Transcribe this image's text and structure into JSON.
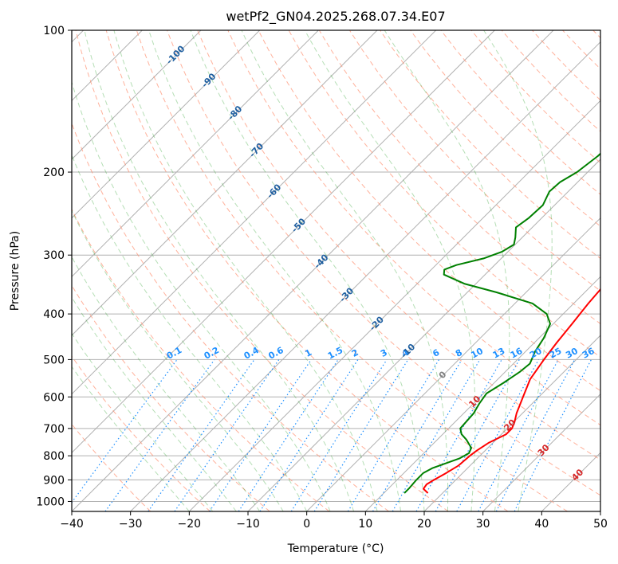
{
  "chart_data": {
    "type": "skew-t",
    "title": "wetPf2_GN04.2025.268.07.34.E07",
    "xlabel": "Temperature (°C)",
    "ylabel": "Pressure (hPa)",
    "xlim": [
      -40,
      50
    ],
    "ylim": [
      1050,
      100
    ],
    "y_scale": "log",
    "x_ticks": [
      "−40",
      "−30",
      "−20",
      "−10",
      "0",
      "10",
      "20",
      "30",
      "40",
      "50"
    ],
    "y_ticks": [
      {
        "p": 100,
        "label": "100"
      },
      {
        "p": 200,
        "label": "200"
      },
      {
        "p": 300,
        "label": "300"
      },
      {
        "p": 400,
        "label": "400"
      },
      {
        "p": 500,
        "label": "500"
      },
      {
        "p": 600,
        "label": "600"
      },
      {
        "p": 700,
        "label": "700"
      },
      {
        "p": 800,
        "label": "800"
      },
      {
        "p": 900,
        "label": "900"
      },
      {
        "p": 1000,
        "label": "1000"
      }
    ],
    "isotherm_labels": [
      {
        "t": -100,
        "p": 113,
        "label": "-100"
      },
      {
        "t": -90,
        "p": 128,
        "label": "-90"
      },
      {
        "t": -80,
        "p": 150,
        "label": "-80"
      },
      {
        "t": -70,
        "p": 180,
        "label": "-70"
      },
      {
        "t": -60,
        "p": 220,
        "label": "-60"
      },
      {
        "t": -50,
        "p": 260,
        "label": "-50"
      },
      {
        "t": -40,
        "p": 310,
        "label": "-40"
      },
      {
        "t": -30,
        "p": 365,
        "label": "-30"
      },
      {
        "t": -20,
        "p": 420,
        "label": "-20"
      },
      {
        "t": -10,
        "p": 480,
        "label": "-10"
      },
      {
        "t": 0,
        "p": 540,
        "label": "0"
      },
      {
        "t": 10,
        "p": 615,
        "label": "10"
      },
      {
        "t": 20,
        "p": 690,
        "label": "20"
      },
      {
        "t": 30,
        "p": 780,
        "label": "30"
      },
      {
        "t": 40,
        "p": 880,
        "label": "40"
      }
    ],
    "mixing_ratio_labels": [
      "0.1",
      "0.2",
      "0.4",
      "0.6",
      "1",
      "1.5",
      "2",
      "3",
      "4",
      "6",
      "8",
      "10",
      "13",
      "16",
      "20",
      "25",
      "30",
      "36"
    ],
    "series": [
      {
        "color": "#ff0000",
        "points": [
          {
            "p": 960,
            "t": 17.5
          },
          {
            "p": 940,
            "t": 16.0
          },
          {
            "p": 920,
            "t": 15.8
          },
          {
            "p": 900,
            "t": 16.3
          },
          {
            "p": 870,
            "t": 17.2
          },
          {
            "p": 840,
            "t": 18.0
          },
          {
            "p": 800,
            "t": 18.3
          },
          {
            "p": 780,
            "t": 18.6
          },
          {
            "p": 750,
            "t": 19.3
          },
          {
            "p": 720,
            "t": 20.8
          },
          {
            "p": 700,
            "t": 20.8
          },
          {
            "p": 680,
            "t": 20.2
          },
          {
            "p": 650,
            "t": 19.0
          },
          {
            "p": 600,
            "t": 17.3
          },
          {
            "p": 550,
            "t": 15.5
          },
          {
            "p": 500,
            "t": 14.5
          },
          {
            "p": 460,
            "t": 13.8
          },
          {
            "p": 420,
            "t": 13.2
          },
          {
            "p": 380,
            "t": 12.5
          },
          {
            "p": 350,
            "t": 12.1
          },
          {
            "p": 320,
            "t": 11.0
          },
          {
            "p": 300,
            "t": 9.0
          },
          {
            "p": 280,
            "t": 6.8
          },
          {
            "p": 260,
            "t": 4.5
          },
          {
            "p": 240,
            "t": 2.3
          },
          {
            "p": 220,
            "t": 0.8
          },
          {
            "p": 200,
            "t": -0.5
          },
          {
            "p": 185,
            "t": -1.0
          },
          {
            "p": 170,
            "t": -1.6
          },
          {
            "p": 155,
            "t": -3.0
          },
          {
            "p": 145,
            "t": -4.0
          },
          {
            "p": 135,
            "t": -4.0
          },
          {
            "p": 128,
            "t": -3.2
          },
          {
            "p": 122,
            "t": -1.6
          },
          {
            "p": 115,
            "t": -0.3
          },
          {
            "p": 110,
            "t": 0.0
          },
          {
            "p": 105,
            "t": 0.7
          },
          {
            "p": 100,
            "t": 2.5
          }
        ]
      },
      {
        "color": "#008000",
        "points": [
          {
            "p": 960,
            "t": 13.5
          },
          {
            "p": 940,
            "t": 13.5
          },
          {
            "p": 900,
            "t": 13.3
          },
          {
            "p": 870,
            "t": 13.3
          },
          {
            "p": 850,
            "t": 14.0
          },
          {
            "p": 830,
            "t": 15.5
          },
          {
            "p": 810,
            "t": 17.0
          },
          {
            "p": 790,
            "t": 17.7
          },
          {
            "p": 770,
            "t": 17.2
          },
          {
            "p": 740,
            "t": 15.0
          },
          {
            "p": 720,
            "t": 13.2
          },
          {
            "p": 700,
            "t": 12.0
          },
          {
            "p": 650,
            "t": 11.7
          },
          {
            "p": 620,
            "t": 11.0
          },
          {
            "p": 590,
            "t": 10.5
          },
          {
            "p": 560,
            "t": 11.6
          },
          {
            "p": 530,
            "t": 12.5
          },
          {
            "p": 510,
            "t": 12.8
          },
          {
            "p": 480,
            "t": 11.6
          },
          {
            "p": 450,
            "t": 10.8
          },
          {
            "p": 420,
            "t": 9.5
          },
          {
            "p": 400,
            "t": 7.2
          },
          {
            "p": 380,
            "t": 3.0
          },
          {
            "p": 360,
            "t": -5.0
          },
          {
            "p": 345,
            "t": -12.0
          },
          {
            "p": 330,
            "t": -17.0
          },
          {
            "p": 322,
            "t": -17.8
          },
          {
            "p": 315,
            "t": -16.5
          },
          {
            "p": 305,
            "t": -13.0
          },
          {
            "p": 295,
            "t": -11.0
          },
          {
            "p": 285,
            "t": -10.2
          },
          {
            "p": 275,
            "t": -11.2
          },
          {
            "p": 262,
            "t": -12.8
          },
          {
            "p": 250,
            "t": -12.2
          },
          {
            "p": 235,
            "t": -12.0
          },
          {
            "p": 220,
            "t": -13.2
          },
          {
            "p": 210,
            "t": -13.0
          },
          {
            "p": 200,
            "t": -11.8
          },
          {
            "p": 185,
            "t": -11.0
          },
          {
            "p": 170,
            "t": -10.8
          },
          {
            "p": 155,
            "t": -10.6
          },
          {
            "p": 145,
            "t": -9.5
          },
          {
            "p": 135,
            "t": -9.0
          },
          {
            "p": 128,
            "t": -8.8
          },
          {
            "p": 122,
            "t": -8.6
          },
          {
            "p": 115,
            "t": -7.3
          },
          {
            "p": 110,
            "t": -6.0
          },
          {
            "p": 105,
            "t": -4.8
          },
          {
            "p": 100,
            "t": -4.0
          }
        ]
      }
    ],
    "colors": {
      "isotherm_label": "#1f5fa0",
      "mixing_ratio": "#1e90ff",
      "dry_adiabat": "#ff9070",
      "moist_adiabat": "#2ca02c",
      "hot_isotherm_label": "#d62728",
      "zero_label": "#808080",
      "grid": "#b0b0b0"
    },
    "grid": true
  }
}
